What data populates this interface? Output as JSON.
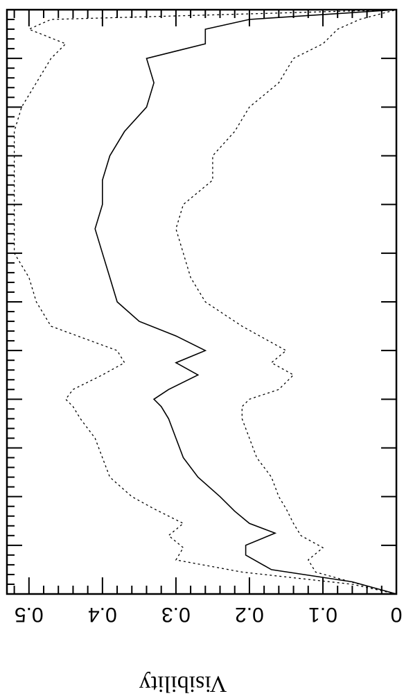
{
  "chart_data": {
    "type": "line",
    "orientation": "rotated-180",
    "ylabel": "Visibility",
    "xlabel": "",
    "title": "",
    "ylim": [
      0,
      0.53
    ],
    "xlim": [
      0,
      12
    ],
    "y_ticks": [
      "0",
      "0.1",
      "0.2",
      "0.3",
      "0.4",
      "0.5"
    ],
    "x_tick_labels": [],
    "grid": false,
    "series": [
      {
        "style": "solid",
        "x": [
          0,
          0.25,
          0.5,
          0.8,
          1.0,
          1.25,
          1.45,
          1.7,
          2.0,
          2.4,
          2.8,
          3.2,
          3.6,
          3.85,
          4.0,
          4.2,
          4.5,
          4.75,
          5.0,
          5.3,
          5.6,
          6.0,
          6.5,
          7.0,
          7.5,
          8.0,
          8.5,
          9.0,
          9.5,
          10.0,
          10.5,
          11.0,
          11.3,
          11.6,
          11.8,
          12.0
        ],
        "y": [
          0.0,
          0.06,
          0.17,
          0.205,
          0.205,
          0.165,
          0.2,
          0.22,
          0.24,
          0.27,
          0.29,
          0.3,
          0.31,
          0.32,
          0.33,
          0.31,
          0.27,
          0.3,
          0.26,
          0.3,
          0.35,
          0.38,
          0.39,
          0.4,
          0.41,
          0.4,
          0.4,
          0.39,
          0.37,
          0.34,
          0.33,
          0.34,
          0.26,
          0.26,
          0.2,
          0.0
        ]
      },
      {
        "style": "dotted",
        "x": [
          0,
          0.2,
          0.45,
          0.7,
          0.95,
          1.2,
          1.45,
          1.75,
          2.0,
          2.4,
          2.8,
          3.2,
          3.6,
          3.85,
          4.0,
          4.2,
          4.5,
          4.75,
          5.0,
          5.5,
          6.0,
          6.5,
          7.0,
          7.5,
          8.0,
          8.5,
          9.0,
          9.5,
          10.0,
          10.5,
          11.0,
          11.3,
          11.6,
          11.8,
          12.0
        ],
        "y": [
          0.0,
          0.05,
          0.11,
          0.12,
          0.1,
          0.13,
          0.14,
          0.15,
          0.16,
          0.17,
          0.19,
          0.2,
          0.21,
          0.21,
          0.2,
          0.16,
          0.14,
          0.17,
          0.15,
          0.21,
          0.26,
          0.28,
          0.29,
          0.3,
          0.29,
          0.25,
          0.25,
          0.22,
          0.2,
          0.16,
          0.14,
          0.1,
          0.08,
          0.05,
          0.0
        ]
      },
      {
        "style": "dotted",
        "x": [
          0,
          0.2,
          0.45,
          0.7,
          0.95,
          1.2,
          1.45,
          1.75,
          2.0,
          2.4,
          2.8,
          3.2,
          3.6,
          3.85,
          4.0,
          4.2,
          4.5,
          4.75,
          5.0,
          5.5,
          6.0,
          6.5,
          7.0,
          7.5,
          8.0,
          8.5,
          9.0,
          9.5,
          10.0,
          10.5,
          11.0,
          11.3,
          11.6,
          11.8,
          12.0
        ],
        "y": [
          0.0,
          0.06,
          0.21,
          0.3,
          0.29,
          0.31,
          0.29,
          0.33,
          0.36,
          0.39,
          0.4,
          0.41,
          0.43,
          0.44,
          0.45,
          0.44,
          0.4,
          0.37,
          0.38,
          0.47,
          0.49,
          0.5,
          0.52,
          0.52,
          0.52,
          0.52,
          0.52,
          0.52,
          0.51,
          0.49,
          0.47,
          0.45,
          0.5,
          0.47,
          0.0
        ]
      }
    ]
  }
}
